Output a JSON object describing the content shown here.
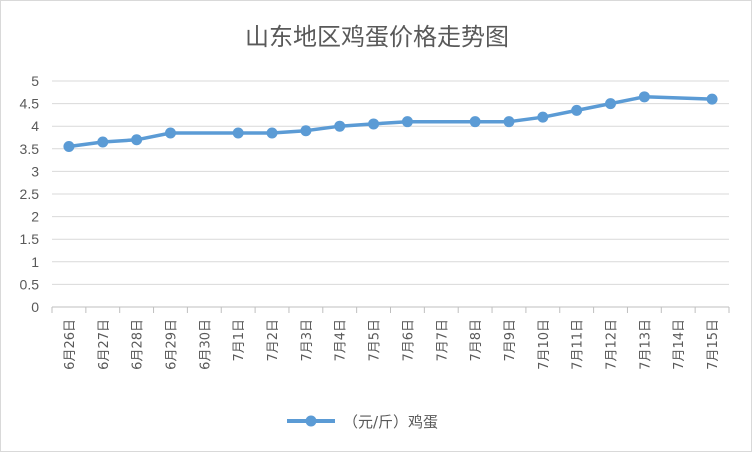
{
  "chart_data": {
    "type": "line",
    "title": "山东地区鸡蛋价格走势图",
    "xlabel": "",
    "ylabel": "",
    "ylim": [
      0,
      5
    ],
    "yticks": [
      "0",
      "0.5",
      "1",
      "1.5",
      "2",
      "2.5",
      "3",
      "3.5",
      "4",
      "4.5",
      "5"
    ],
    "grid": true,
    "legend_position": "bottom",
    "categories": [
      "6月26日",
      "6月27日",
      "6月28日",
      "6月29日",
      "6月30日",
      "7月1日",
      "7月2日",
      "7月3日",
      "7月4日",
      "7月5日",
      "7月6日",
      "7月7日",
      "7月8日",
      "7月9日",
      "7月10日",
      "7月11日",
      "7月12日",
      "7月13日",
      "7月14日",
      "7月15日"
    ],
    "series": [
      {
        "name": "（元/斤）鸡蛋",
        "color": "#5b9bd5",
        "values": [
          3.55,
          3.65,
          3.7,
          3.85,
          null,
          3.85,
          3.85,
          3.9,
          4.0,
          4.05,
          4.1,
          null,
          4.1,
          4.1,
          4.2,
          4.35,
          4.5,
          4.65,
          null,
          4.6
        ]
      }
    ]
  }
}
